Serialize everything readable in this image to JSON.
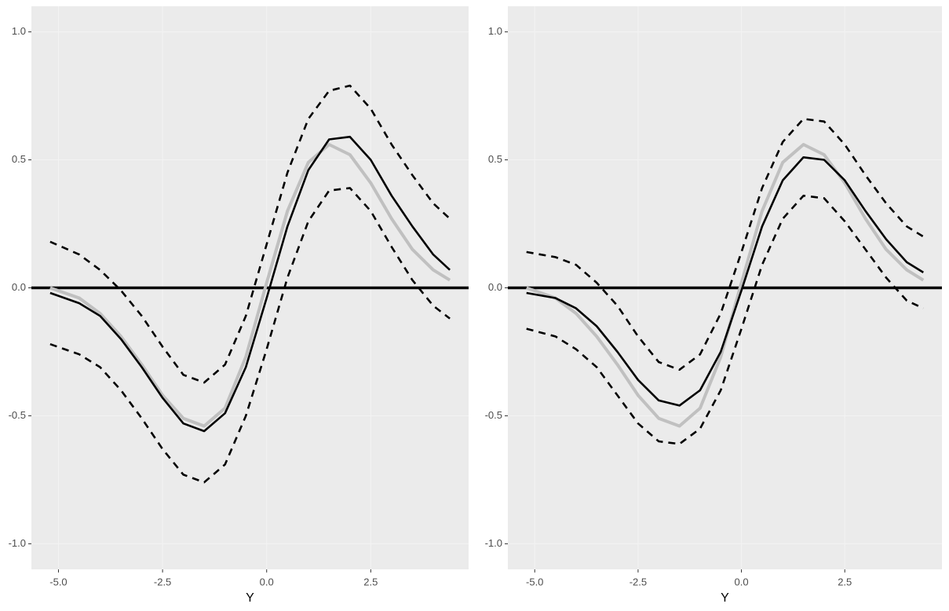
{
  "chart_data": [
    {
      "type": "line",
      "x_label": "Y",
      "x": [
        -5.2,
        -4.5,
        -4,
        -3.5,
        -3,
        -2.5,
        -2,
        -1.5,
        -1,
        -0.5,
        0,
        0.5,
        1,
        1.5,
        2,
        2.5,
        3,
        3.5,
        4,
        4.4
      ],
      "series": [
        {
          "color": "#c0c0c0",
          "linestyle": "solid",
          "values": [
            0.0,
            -0.04,
            -0.1,
            -0.19,
            -0.3,
            -0.42,
            -0.51,
            -0.54,
            -0.47,
            -0.27,
            0.02,
            0.3,
            0.49,
            0.56,
            0.52,
            0.41,
            0.27,
            0.15,
            0.07,
            0.03
          ]
        },
        {
          "color": "#000000",
          "linestyle": "solid",
          "values": [
            -0.02,
            -0.06,
            -0.11,
            -0.2,
            -0.31,
            -0.43,
            -0.53,
            -0.56,
            -0.49,
            -0.31,
            -0.04,
            0.24,
            0.46,
            0.58,
            0.59,
            0.5,
            0.36,
            0.24,
            0.13,
            0.07
          ]
        },
        {
          "color": "#000000",
          "linestyle": "dashed",
          "values": [
            0.18,
            0.13,
            0.07,
            -0.01,
            -0.11,
            -0.23,
            -0.34,
            -0.37,
            -0.3,
            -0.11,
            0.17,
            0.45,
            0.66,
            0.77,
            0.79,
            0.7,
            0.56,
            0.44,
            0.33,
            0.27
          ]
        },
        {
          "color": "#000000",
          "linestyle": "dashed",
          "values": [
            -0.22,
            -0.26,
            -0.31,
            -0.4,
            -0.51,
            -0.63,
            -0.73,
            -0.76,
            -0.69,
            -0.5,
            -0.24,
            0.04,
            0.26,
            0.38,
            0.39,
            0.3,
            0.16,
            0.03,
            -0.07,
            -0.12
          ]
        }
      ],
      "hline": 0,
      "xlim": [
        -5.65,
        4.85
      ],
      "ylim": [
        -1.1,
        1.1
      ],
      "xticks": [
        {
          "value": -5,
          "label": "-5.0"
        },
        {
          "value": -2.5,
          "label": "-2.5"
        },
        {
          "value": 0,
          "label": "0.0"
        },
        {
          "value": 2.5,
          "label": "2.5"
        }
      ],
      "yticks": [
        {
          "value": -1,
          "label": "-1.0"
        },
        -0.5,
        {
          "value": 0,
          "label": "0.0"
        },
        0.5,
        {
          "value": 1,
          "label": "1.0"
        }
      ],
      "grid": true
    },
    {
      "type": "line",
      "x_label": "Y",
      "x": [
        -5.2,
        -4.5,
        -4,
        -3.5,
        -3,
        -2.5,
        -2,
        -1.5,
        -1,
        -0.5,
        0,
        0.5,
        1,
        1.5,
        2,
        2.5,
        3,
        3.5,
        4,
        4.4
      ],
      "series": [
        {
          "color": "#c0c0c0",
          "linestyle": "solid",
          "values": [
            0.0,
            -0.04,
            -0.1,
            -0.19,
            -0.3,
            -0.42,
            -0.51,
            -0.54,
            -0.47,
            -0.27,
            0.02,
            0.3,
            0.49,
            0.56,
            0.52,
            0.41,
            0.27,
            0.15,
            0.07,
            0.03
          ]
        },
        {
          "color": "#000000",
          "linestyle": "solid",
          "values": [
            -0.02,
            -0.04,
            -0.08,
            -0.15,
            -0.25,
            -0.36,
            -0.44,
            -0.46,
            -0.4,
            -0.25,
            -0.01,
            0.24,
            0.42,
            0.51,
            0.5,
            0.42,
            0.3,
            0.19,
            0.1,
            0.06
          ]
        },
        {
          "color": "#000000",
          "linestyle": "dashed",
          "values": [
            0.14,
            0.12,
            0.09,
            0.02,
            -0.07,
            -0.19,
            -0.29,
            -0.32,
            -0.26,
            -0.1,
            0.14,
            0.39,
            0.57,
            0.66,
            0.65,
            0.56,
            0.44,
            0.33,
            0.24,
            0.2
          ]
        },
        {
          "color": "#000000",
          "linestyle": "dashed",
          "values": [
            -0.16,
            -0.19,
            -0.24,
            -0.31,
            -0.42,
            -0.53,
            -0.6,
            -0.61,
            -0.55,
            -0.4,
            -0.16,
            0.09,
            0.27,
            0.36,
            0.35,
            0.26,
            0.15,
            0.04,
            -0.05,
            -0.08
          ]
        }
      ],
      "hline": 0,
      "xlim": [
        -5.65,
        4.85
      ],
      "ylim": [
        -1.1,
        1.1
      ],
      "xticks": [
        {
          "value": -5,
          "label": "-5.0"
        },
        {
          "value": -2.5,
          "label": "-2.5"
        },
        {
          "value": 0,
          "label": "0.0"
        },
        {
          "value": 2.5,
          "label": "2.5"
        }
      ],
      "yticks": [
        {
          "value": -1,
          "label": "-1.0"
        },
        -0.5,
        {
          "value": 0,
          "label": "0.0"
        },
        0.5,
        {
          "value": 1,
          "label": "1.0"
        }
      ],
      "grid": true
    }
  ]
}
